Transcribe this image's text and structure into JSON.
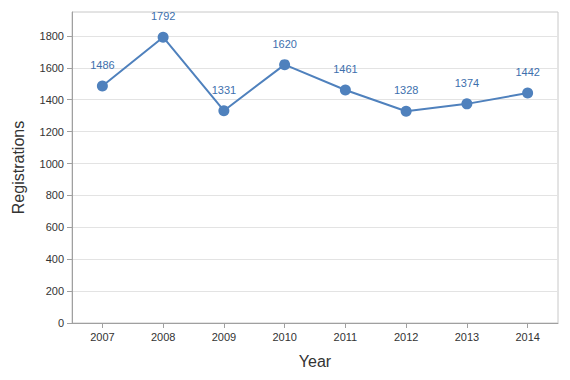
{
  "chart_data": {
    "type": "line",
    "x_label": "Year",
    "y_label": "Registrations",
    "categories": [
      "2007",
      "2008",
      "2009",
      "2010",
      "2011",
      "2012",
      "2013",
      "2014"
    ],
    "values": [
      1486,
      1792,
      1331,
      1620,
      1461,
      1328,
      1374,
      1442
    ],
    "color": "#4f81bd",
    "marker": "circle",
    "line_style": "solid",
    "ylim": [
      0,
      1950
    ],
    "yticks": [
      0,
      200,
      400,
      600,
      800,
      1000,
      1200,
      1400,
      1600,
      1800
    ],
    "grid": true,
    "data_labels": true
  }
}
